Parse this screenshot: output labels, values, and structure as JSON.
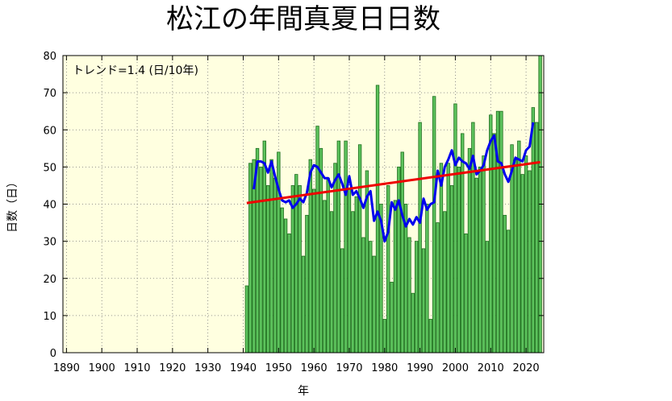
{
  "chart_data": {
    "type": "bar",
    "title": "松江の年間真夏日日数",
    "xlabel": "年",
    "ylabel": "日数（日）",
    "annotation": "トレンド=1.4 (日/10年)",
    "xlim": [
      1889,
      2025
    ],
    "ylim": [
      0,
      80
    ],
    "xticks": [
      1890,
      1900,
      1910,
      1920,
      1930,
      1940,
      1950,
      1960,
      1970,
      1980,
      1990,
      2000,
      2010,
      2020
    ],
    "yticks": [
      0,
      10,
      20,
      30,
      40,
      50,
      60,
      70,
      80
    ],
    "grid": true,
    "colors": {
      "bar_fill": "#5cc25c",
      "bar_edge": "#1f6e1f",
      "plot_bg": "#ffffe0",
      "moving_average": "#0000ee",
      "trend": "#ee0000"
    },
    "series": [
      {
        "kind": "bar",
        "x": [
          1941,
          1942,
          1943,
          1944,
          1945,
          1946,
          1947,
          1948,
          1949,
          1950,
          1951,
          1952,
          1953,
          1954,
          1955,
          1956,
          1957,
          1958,
          1959,
          1960,
          1961,
          1962,
          1963,
          1964,
          1965,
          1966,
          1967,
          1968,
          1969,
          1970,
          1971,
          1972,
          1973,
          1974,
          1975,
          1976,
          1977,
          1978,
          1979,
          1980,
          1981,
          1982,
          1983,
          1984,
          1985,
          1986,
          1987,
          1988,
          1989,
          1990,
          1991,
          1992,
          1993,
          1994,
          1995,
          1996,
          1997,
          1998,
          1999,
          2000,
          2001,
          2002,
          2003,
          2004,
          2005,
          2006,
          2007,
          2008,
          2009,
          2010,
          2011,
          2012,
          2013,
          2014,
          2015,
          2016,
          2017,
          2018,
          2019,
          2020,
          2021,
          2022,
          2023,
          2024
        ],
        "values": [
          18,
          51,
          52,
          55,
          50,
          57,
          45,
          52,
          47,
          54,
          39,
          36,
          32,
          45,
          48,
          45,
          26,
          37,
          52,
          44,
          61,
          55,
          41,
          47,
          38,
          51,
          57,
          28,
          57,
          44,
          38,
          42,
          56,
          31,
          49,
          30,
          26,
          72,
          40,
          9,
          45,
          19,
          41,
          50,
          54,
          40,
          31,
          16,
          30,
          62,
          28,
          40,
          9,
          69,
          35,
          51,
          38,
          51,
          45,
          67,
          50,
          59,
          32,
          55,
          62,
          47,
          50,
          53,
          30,
          64,
          59,
          65,
          65,
          37,
          33,
          56,
          52,
          57,
          48,
          53,
          49,
          66,
          62,
          80
        ]
      },
      {
        "kind": "line",
        "x": [
          1943,
          1944,
          1945,
          1946,
          1947,
          1948,
          1949,
          1950,
          1951,
          1952,
          1953,
          1954,
          1955,
          1956,
          1957,
          1958,
          1959,
          1960,
          1961,
          1962,
          1963,
          1964,
          1965,
          1966,
          1967,
          1968,
          1969,
          1970,
          1971,
          1972,
          1973,
          1974,
          1975,
          1976,
          1977,
          1978,
          1979,
          1980,
          1981,
          1982,
          1983,
          1984,
          1985,
          1986,
          1987,
          1988,
          1989,
          1990,
          1991,
          1992,
          1993,
          1994,
          1995,
          1996,
          1997,
          1998,
          1999,
          2000,
          2001,
          2002,
          2003,
          2004,
          2005,
          2006,
          2007,
          2008,
          2009,
          2010,
          2011,
          2012,
          2013,
          2014,
          2015,
          2016,
          2017,
          2018,
          2019,
          2020,
          2021,
          2022
        ],
        "values": [
          44,
          51.5,
          51.5,
          51,
          48.5,
          51.5,
          47.5,
          44,
          41,
          40.5,
          41,
          39,
          40,
          41.5,
          40.5,
          43,
          48.5,
          50.5,
          50,
          48.5,
          47,
          47,
          44.5,
          46.5,
          48,
          45.5,
          42.5,
          47.5,
          42.5,
          43.5,
          41.5,
          39,
          42,
          43.5,
          35.5,
          38,
          35.5,
          30,
          32.5,
          40.5,
          38.5,
          41,
          37,
          34,
          36,
          34.5,
          36.5,
          35,
          41.5,
          38.5,
          40,
          40.5,
          49,
          45,
          50,
          52,
          54.5,
          50.5,
          52.5,
          51.5,
          51,
          49.5,
          53,
          48,
          49,
          50.5,
          54.5,
          57,
          58.5,
          51.5,
          51,
          48,
          46,
          49,
          52.5,
          52,
          51.5,
          54.5,
          55.5,
          62
        ]
      },
      {
        "kind": "trend",
        "x": [
          1941,
          2024
        ],
        "values": [
          40.3,
          51.3
        ]
      }
    ]
  }
}
